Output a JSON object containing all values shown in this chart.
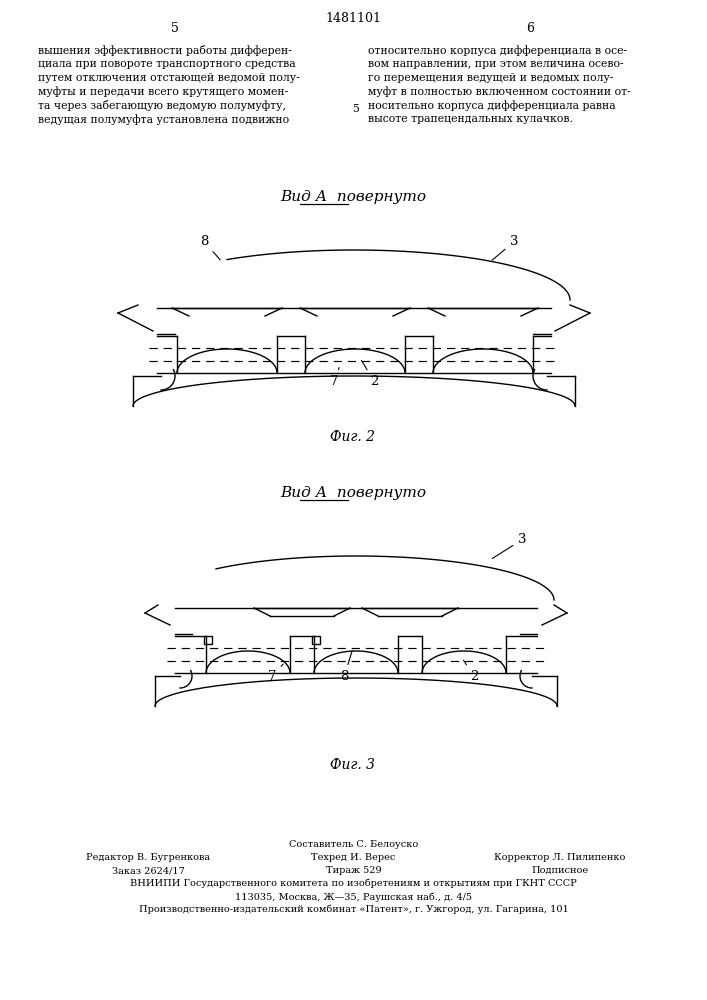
{
  "page_number_left": "5",
  "page_number_right": "6",
  "patent_number": "1481101",
  "text_left": "вышения эффективности работы дифферен-\nциала при повороте транспортного средства\nпутем отключения отстающей ведомой полу-\nмуфты и передачи всего крутящего момен-\nта через забегающую ведомую полумуфту,\nведущая полумуфта установлена подвижно",
  "text_right": "относительно корпуса дифференциала в осе-\nвом направлении, при этом величина осево-\nго перемещения ведущей и ведомых полу-\nмуфт в полностью включенном состоянии от-\nносительно корпуса дифференциала равна\nвысоте трапецендальных кулачков.",
  "line_number": "5",
  "fig2_title": "Вид А  повернуто",
  "fig2_caption": "Фиг. 2",
  "fig3_title": "Вид А  повернуто",
  "fig3_caption": "Фиг. 3",
  "footer_line1": "Составитель С. Белоуско",
  "footer_col1_line1": "Редактор В. Бугренкова",
  "footer_col1_line2": "Заказ 2624/17",
  "footer_col2_line1": "Техред И. Верес",
  "footer_col2_line2": "Тираж 529",
  "footer_col3_line1": "Корректор Л. Пилипенко",
  "footer_col3_line2": "Подписное",
  "footer_org": "ВНИИПИ Государственного комитета по изобретениям и открытиям при ГКНТ СССР",
  "footer_addr": "113035, Москва, Ж—35, Раушская наб., д. 4/5",
  "footer_plant": "Производственно-издательский комбинат «Патент», г. Ужгород, ул. Гагарина, 101",
  "bg_color": "#ffffff",
  "text_color": "#000000"
}
